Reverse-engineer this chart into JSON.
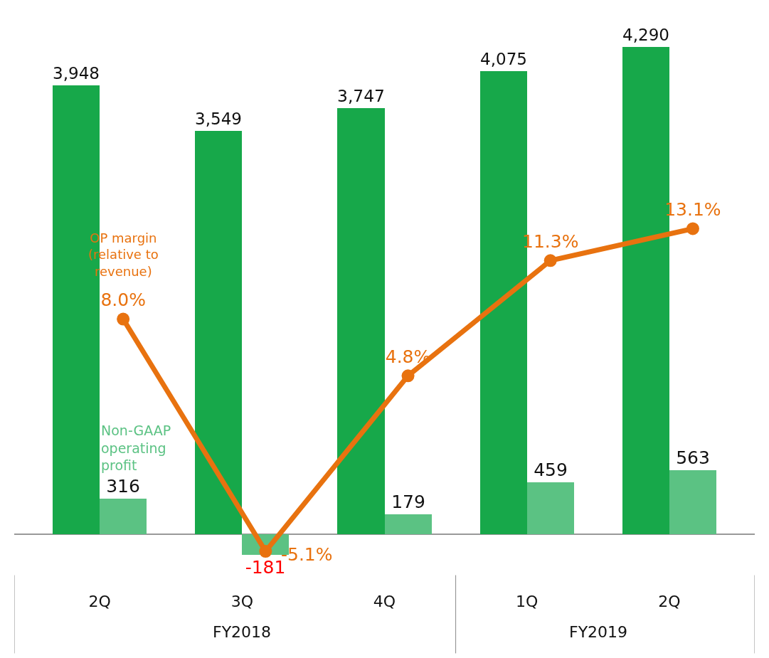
{
  "chart_data": {
    "type": "bar",
    "categories": [
      "2Q",
      "3Q",
      "4Q",
      "1Q",
      "2Q"
    ],
    "series": [
      {
        "color": "#17a84a",
        "values": [
          3948,
          3549,
          3747,
          4075,
          4290
        ],
        "value_labels": [
          "3,948",
          "3,549",
          "3,747",
          "4,075",
          "4,290"
        ]
      },
      {
        "name": "Non-GAAP operating profit",
        "color": "#5bc283",
        "values": [
          316,
          -181,
          179,
          459,
          563
        ],
        "value_labels": [
          "316",
          "-181",
          "179",
          "459",
          "563"
        ]
      },
      {
        "name": "OP margin (relative to revenue)",
        "type": "line",
        "axis": "y2",
        "color": "#e8720f",
        "marker": "circle",
        "values": [
          8.0,
          -5.1,
          4.8,
          11.3,
          13.1
        ],
        "value_labels": [
          "8.0%",
          "-5.1%",
          "4.8%",
          "11.3%",
          "13.1%"
        ]
      }
    ],
    "annotations": [
      "FY2018",
      "FY2019"
    ],
    "ylim": [
      -210,
      4700
    ],
    "y2lim": [
      -5.5,
      26
    ],
    "tick_labels": "x"
  }
}
